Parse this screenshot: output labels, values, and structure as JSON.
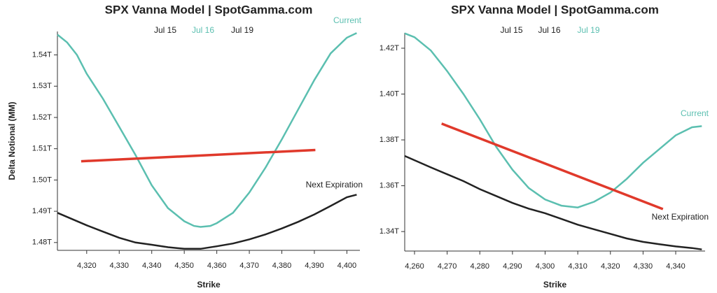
{
  "chart_data": [
    {
      "type": "line",
      "title": "SPX Vanna Model | SpotGamma.com",
      "y_label": "Delta Notional (MM)",
      "x_label": "Strike",
      "legend": [
        {
          "label": "Jul 15",
          "color": "#222222"
        },
        {
          "label": "Jul 16",
          "color": "#5bbfb0"
        },
        {
          "label": "Jul 19",
          "color": "#222222"
        }
      ],
      "xlim": [
        4311,
        4404
      ],
      "ylim": [
        1.4775,
        1.5475
      ],
      "xticks": [
        {
          "value": 4320,
          "label": "4,320"
        },
        {
          "value": 4330,
          "label": "4,330"
        },
        {
          "value": 4340,
          "label": "4,340"
        },
        {
          "value": 4350,
          "label": "4,350"
        },
        {
          "value": 4360,
          "label": "4,360"
        },
        {
          "value": 4370,
          "label": "4,370"
        },
        {
          "value": 4380,
          "label": "4,380"
        },
        {
          "value": 4390,
          "label": "4,390"
        },
        {
          "value": 4400,
          "label": "4,400"
        }
      ],
      "yticks": [
        {
          "value": 1.48,
          "label": "1.48T"
        },
        {
          "value": 1.49,
          "label": "1.49T"
        },
        {
          "value": 1.5,
          "label": "1.50T"
        },
        {
          "value": 1.51,
          "label": "1.51T"
        },
        {
          "value": 1.52,
          "label": "1.52T"
        },
        {
          "value": 1.53,
          "label": "1.53T"
        },
        {
          "value": 1.54,
          "label": "1.54T"
        }
      ],
      "series": [
        {
          "name": "Current",
          "color": "#5bbfb0",
          "x": [
            4311,
            4314,
            4317,
            4320,
            4325,
            4330,
            4335,
            4340,
            4345,
            4350,
            4353,
            4355,
            4358,
            4360,
            4365,
            4370,
            4375,
            4380,
            4385,
            4390,
            4395,
            4400,
            4403
          ],
          "values": [
            1.5465,
            1.544,
            1.54,
            1.534,
            1.526,
            1.517,
            1.508,
            1.4983,
            1.491,
            1.4868,
            1.4853,
            1.485,
            1.4853,
            1.4862,
            1.4895,
            1.496,
            1.504,
            1.513,
            1.5225,
            1.532,
            1.5405,
            1.5455,
            1.547
          ]
        },
        {
          "name": "Next Expiration",
          "color": "#222222",
          "x": [
            4311,
            4320,
            4325,
            4330,
            4335,
            4340,
            4345,
            4350,
            4355,
            4360,
            4365,
            4370,
            4375,
            4380,
            4385,
            4390,
            4395,
            4400,
            4403
          ],
          "values": [
            1.4895,
            1.4855,
            1.4835,
            1.4815,
            1.48,
            1.4793,
            1.4785,
            1.478,
            1.478,
            1.4788,
            1.4797,
            1.481,
            1.4826,
            1.4845,
            1.4866,
            1.489,
            1.4917,
            1.4945,
            1.4953
          ]
        },
        {
          "color": "#e0392b",
          "x": [
            4318.3,
            4390.3
          ],
          "values": [
            1.506,
            1.5096
          ]
        }
      ]
    },
    {
      "type": "line",
      "title": "SPX Vanna Model | SpotGamma.com",
      "x_label": "Strike",
      "legend": [
        {
          "label": "Jul 15",
          "color": "#222222"
        },
        {
          "label": "Jul 16",
          "color": "#222222"
        },
        {
          "label": "Jul 19",
          "color": "#5bbfb0"
        }
      ],
      "xlim": [
        4257,
        4349
      ],
      "ylim": [
        1.3315,
        1.4267
      ],
      "xticks": [
        {
          "value": 4260,
          "label": "4,260"
        },
        {
          "value": 4270,
          "label": "4,270"
        },
        {
          "value": 4280,
          "label": "4,280"
        },
        {
          "value": 4290,
          "label": "4,290"
        },
        {
          "value": 4300,
          "label": "4,300"
        },
        {
          "value": 4310,
          "label": "4,310"
        },
        {
          "value": 4320,
          "label": "4,320"
        },
        {
          "value": 4330,
          "label": "4,330"
        },
        {
          "value": 4340,
          "label": "4,340"
        }
      ],
      "yticks": [
        {
          "value": 1.34,
          "label": "1.34T"
        },
        {
          "value": 1.36,
          "label": "1.36T"
        },
        {
          "value": 1.38,
          "label": "1.38T"
        },
        {
          "value": 1.4,
          "label": "1.40T"
        },
        {
          "value": 1.42,
          "label": "1.42T"
        }
      ],
      "series": [
        {
          "name": "Current",
          "color": "#5bbfb0",
          "x": [
            4257,
            4260,
            4265,
            4270,
            4275,
            4280,
            4285,
            4290,
            4295,
            4300,
            4305,
            4310,
            4315,
            4320,
            4325,
            4330,
            4335,
            4340,
            4345,
            4348
          ],
          "values": [
            1.4265,
            1.4248,
            1.419,
            1.41,
            1.4,
            1.389,
            1.377,
            1.367,
            1.359,
            1.354,
            1.3513,
            1.3505,
            1.353,
            1.357,
            1.363,
            1.37,
            1.376,
            1.382,
            1.3855,
            1.386
          ]
        },
        {
          "name": "Next Expiration",
          "color": "#222222",
          "x": [
            4257,
            4265,
            4270,
            4275,
            4280,
            4285,
            4290,
            4295,
            4300,
            4305,
            4310,
            4315,
            4320,
            4325,
            4330,
            4335,
            4340,
            4345,
            4348
          ],
          "values": [
            1.373,
            1.368,
            1.365,
            1.362,
            1.3585,
            1.3555,
            1.3525,
            1.35,
            1.348,
            1.3455,
            1.343,
            1.341,
            1.339,
            1.337,
            1.3355,
            1.3345,
            1.3335,
            1.3328,
            1.3322
          ]
        },
        {
          "color": "#e0392b",
          "x": [
            4268.3,
            4336.1
          ],
          "values": [
            1.3871,
            1.3498
          ]
        }
      ]
    }
  ]
}
